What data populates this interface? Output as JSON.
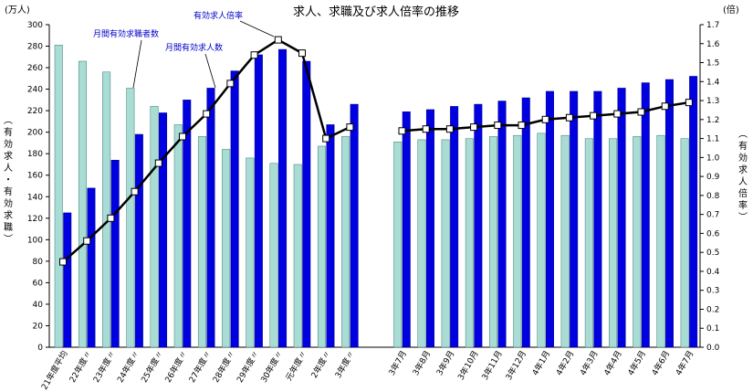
{
  "chart_data": {
    "type": "bar",
    "title": "求人、求職及び求人倍率の推移",
    "left_unit": "(万人)",
    "right_unit": "(倍)",
    "left_axis_label": "(有効求人・有効求職)",
    "right_axis_label": "(有効求人倍率)",
    "left_ticks": [
      "0",
      "20",
      "40",
      "60",
      "80",
      "100",
      "120",
      "140",
      "160",
      "180",
      "200",
      "220",
      "240",
      "260",
      "280",
      "300"
    ],
    "right_ticks": [
      "0.0",
      "0.1",
      "0.2",
      "0.3",
      "0.4",
      "0.5",
      "0.6",
      "0.7",
      "0.8",
      "0.9",
      "1.0",
      "1.1",
      "1.2",
      "1.3",
      "1.4",
      "1.5",
      "1.6",
      "1.7"
    ],
    "ylim_left": [
      0,
      300
    ],
    "ylim_right": [
      0,
      1.7
    ],
    "categories": [
      "21年度平均",
      "22年度〃",
      "23年度〃",
      "24年度〃",
      "25年度〃",
      "26年度〃",
      "27年度〃",
      "28年度〃",
      "29年度〃",
      "30年度〃",
      "元年度〃",
      "2年度〃",
      "3年度〃",
      "3年7月",
      "3年8月",
      "3年9月",
      "3年10月",
      "3年11月",
      "3年12月",
      "4年1月",
      "4年2月",
      "4年3月",
      "4年4月",
      "4年5月",
      "4年6月",
      "4年7月"
    ],
    "series": [
      {
        "name": "月間有効求職者数",
        "axis": "left",
        "color": "#a8dcd4",
        "values": [
          281,
          266,
          256,
          241,
          224,
          207,
          196,
          184,
          176,
          171,
          170,
          187,
          196,
          191,
          193,
          193,
          194,
          196,
          197,
          199,
          197,
          194,
          194,
          196,
          197,
          194
        ]
      },
      {
        "name": "月間有効求人数",
        "axis": "left",
        "color": "#0000e0",
        "values": [
          125,
          148,
          174,
          198,
          218,
          230,
          241,
          257,
          272,
          277,
          266,
          207,
          226,
          219,
          221,
          224,
          226,
          229,
          232,
          238,
          238,
          238,
          241,
          246,
          249,
          252
        ]
      },
      {
        "name": "有効求人倍率",
        "axis": "right",
        "type": "line",
        "values": [
          0.45,
          0.56,
          0.68,
          0.82,
          0.97,
          1.11,
          1.23,
          1.39,
          1.54,
          1.62,
          1.55,
          1.1,
          1.16,
          1.14,
          1.15,
          1.15,
          1.16,
          1.17,
          1.17,
          1.2,
          1.21,
          1.22,
          1.23,
          1.24,
          1.27,
          1.29
        ]
      }
    ],
    "annotations": {
      "ratio_label": "有効求人倍率",
      "seekers_label": "月間有効求職者数",
      "openings_label": "月間有効求人数"
    },
    "colors": {
      "seekers": "#a8dcd4",
      "openings": "#0000e0",
      "line": "#000000",
      "annotation_text": "#0000cc"
    }
  }
}
